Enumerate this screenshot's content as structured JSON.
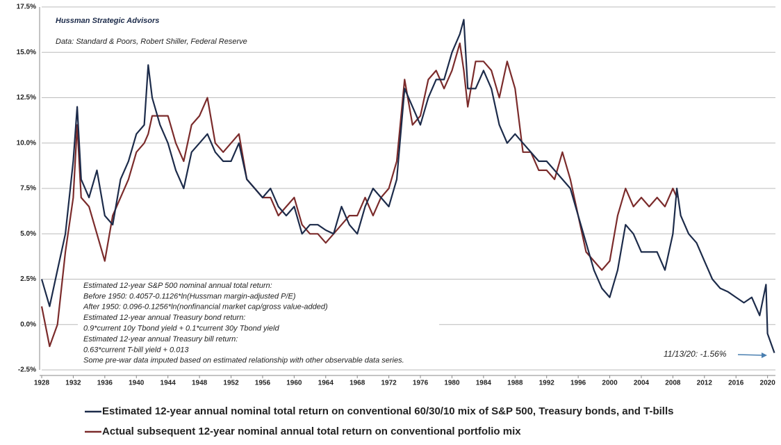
{
  "chart_data": {
    "type": "line",
    "title": "Hussman Strategic Advisors",
    "subtitle": "Data: Standard & Poors, Robert Shiller, Federal Reserve",
    "notes": [
      "Estimated 12-year S&P 500  nominal annual total return:",
      "Before 1950:  0.4057-0.1126*ln(Hussman margin-adjusted P/E)",
      "After 1950:  0.096-0.1256*ln(nonfinancial market cap/gross value-added)",
      "Estimated 12-year annual Treasury bond return:",
      "0.9*current 10y Tbond yield + 0.1*current 30y Tbond yield",
      "Estimated 12-year annual Treasury bill return:",
      "0.63*current T-bill yield + 0.013",
      "Some pre-war data imputed based on estimated relationship with other observable data series."
    ],
    "annotation": "11/13/20: -1.56%",
    "x": [
      1928,
      1929,
      1930,
      1931,
      1932,
      1932.5,
      1933,
      1934,
      1935,
      1936,
      1937,
      1938,
      1939,
      1940,
      1941,
      1941.5,
      1942,
      1943,
      1944,
      1945,
      1946,
      1947,
      1948,
      1949,
      1950,
      1951,
      1952,
      1953,
      1954,
      1955,
      1956,
      1957,
      1958,
      1959,
      1960,
      1961,
      1962,
      1963,
      1964,
      1965,
      1966,
      1967,
      1968,
      1969,
      1970,
      1971,
      1972,
      1973,
      1974,
      1975,
      1976,
      1977,
      1978,
      1979,
      1980,
      1981,
      1981.5,
      1982,
      1983,
      1984,
      1985,
      1986,
      1987,
      1988,
      1989,
      1990,
      1991,
      1992,
      1993,
      1994,
      1995,
      1996,
      1997,
      1998,
      1999,
      2000,
      2001,
      2002,
      2003,
      2004,
      2005,
      2006,
      2007,
      2008,
      2008.5,
      2009,
      2010,
      2011,
      2012,
      2013,
      2014,
      2015,
      2016,
      2017,
      2018,
      2019,
      2019.8,
      2020,
      2020.87
    ],
    "series": [
      {
        "name": "Estimated 12-year annual nominal total return on conventional 60/30/10 mix of S&P 500, Treasury bonds, and T-bills",
        "color": "#1c2b4a",
        "values": [
          2.5,
          1.0,
          3.0,
          5,
          9,
          12,
          8,
          7,
          8.5,
          6,
          5.5,
          8,
          9,
          10.5,
          11,
          14.3,
          12.5,
          11,
          10,
          8.5,
          7.5,
          9.5,
          10,
          10.5,
          9.5,
          9,
          9,
          10,
          8,
          7.5,
          7,
          7.5,
          6.5,
          6,
          6.5,
          5,
          5.5,
          5.5,
          5.2,
          5,
          6.5,
          5.5,
          5,
          6.5,
          7.5,
          7,
          6.5,
          8,
          13,
          12,
          11,
          12.5,
          13.5,
          13.5,
          15,
          16,
          16.8,
          13,
          13,
          14,
          13,
          11,
          10,
          10.5,
          10,
          9.5,
          9,
          9,
          8.5,
          8,
          7.5,
          6,
          4.5,
          3,
          2,
          1.5,
          3,
          5.5,
          5,
          4,
          4,
          4,
          3,
          5,
          7.5,
          6,
          5,
          4.5,
          3.5,
          2.5,
          2,
          1.8,
          1.5,
          1.2,
          1.5,
          0.5,
          2.2,
          -0.5,
          -1.56
        ]
      },
      {
        "name": "Actual subsequent 12-year nominal annual total return on conventional portfolio mix",
        "color": "#7b2b2b",
        "values": [
          1.0,
          -1.2,
          0,
          4,
          7,
          11,
          7,
          6.5,
          5,
          3.5,
          6,
          7,
          8,
          9.5,
          10,
          10.5,
          11.5,
          11.5,
          11.5,
          10,
          9,
          11,
          11.5,
          12.5,
          10,
          9.5,
          10,
          10.5,
          8,
          7.5,
          7,
          7,
          6,
          6.5,
          7,
          5.5,
          5,
          5,
          4.5,
          5,
          5.5,
          6,
          6,
          7,
          6,
          7,
          7.5,
          9,
          13.5,
          11,
          11.5,
          13.5,
          14,
          13,
          14,
          15.5,
          14,
          12,
          14.5,
          14.5,
          14,
          12.5,
          14.5,
          13,
          9.5,
          9.5,
          8.5,
          8.5,
          8,
          9.5,
          8,
          6,
          4,
          3.5,
          3,
          3.5,
          6,
          7.5,
          6.5,
          7,
          6.5,
          7,
          6.5,
          7.5,
          7,
          null,
          null,
          null,
          null,
          null,
          null,
          null,
          null,
          null,
          null,
          null,
          null,
          null,
          null
        ]
      }
    ],
    "xlim": [
      1928,
      2021
    ],
    "xticks": [
      1928,
      1932,
      1936,
      1940,
      1944,
      1948,
      1952,
      1956,
      1960,
      1964,
      1968,
      1972,
      1976,
      1980,
      1984,
      1988,
      1992,
      1996,
      2000,
      2004,
      2008,
      2012,
      2016,
      2020
    ],
    "ylim": [
      -2.5,
      17.5
    ],
    "yticks": [
      {
        "value": -2.5,
        "label": "-2.5%"
      },
      {
        "value": 0,
        "label": "0.0%"
      },
      {
        "value": 2.5,
        "label": "2.5%"
      },
      {
        "value": 5,
        "label": "5.0%"
      },
      {
        "value": 7.5,
        "label": "7.5%"
      },
      {
        "value": 10,
        "label": "10.0%"
      },
      {
        "value": 12.5,
        "label": "12.5%"
      },
      {
        "value": 15,
        "label": "15.0%"
      },
      {
        "value": 17.5,
        "label": "17.5%"
      }
    ],
    "grid": true
  }
}
